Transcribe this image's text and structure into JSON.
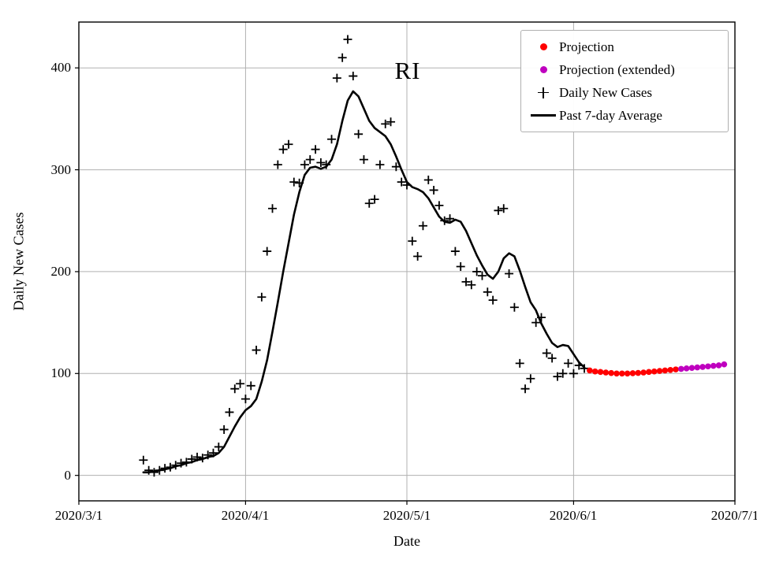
{
  "chart_data": {
    "type": "line",
    "title": "RI",
    "xlabel": "Date",
    "ylabel": "Daily New Cases",
    "x_unit": "days since 2020/3/1",
    "xlim_days": [
      0,
      122
    ],
    "ylim": [
      -25,
      445
    ],
    "grid": true,
    "colors": {
      "grid": "#b0b0b0",
      "axis": "#000000",
      "projection": "#ff0000",
      "projection_extended": "#bf00bf",
      "daily_cases": "#000000",
      "average_line": "#000000"
    },
    "x_ticks": [
      {
        "value": 0,
        "label": "2020/3/1"
      },
      {
        "value": 31,
        "label": "2020/4/1"
      },
      {
        "value": 61,
        "label": "2020/5/1"
      },
      {
        "value": 92,
        "label": "2020/6/1"
      },
      {
        "value": 122,
        "label": "2020/7/1"
      }
    ],
    "y_ticks": [
      {
        "value": 0,
        "label": "0"
      },
      {
        "value": 100,
        "label": "100"
      },
      {
        "value": 200,
        "label": "200"
      },
      {
        "value": 300,
        "label": "300"
      },
      {
        "value": 400,
        "label": "400"
      }
    ],
    "legend": {
      "position": "upper right",
      "items": [
        {
          "label": "Projection",
          "marker": "dot",
          "color": "#ff0000"
        },
        {
          "label": "Projection (extended)",
          "marker": "dot",
          "color": "#bf00bf"
        },
        {
          "label": "Daily New Cases",
          "marker": "plus",
          "color": "#000000"
        },
        {
          "label": "Past 7-day Average",
          "marker": "line",
          "color": "#000000"
        }
      ]
    },
    "series": [
      {
        "name": "Daily New Cases",
        "type": "scatter",
        "marker": "plus",
        "color": "#000000",
        "points": [
          [
            12,
            15
          ],
          [
            13,
            5
          ],
          [
            14,
            3
          ],
          [
            15,
            5
          ],
          [
            16,
            7
          ],
          [
            17,
            8
          ],
          [
            18,
            10
          ],
          [
            19,
            12
          ],
          [
            20,
            13
          ],
          [
            21,
            16
          ],
          [
            22,
            18
          ],
          [
            23,
            17
          ],
          [
            24,
            20
          ],
          [
            25,
            22
          ],
          [
            26,
            28
          ],
          [
            27,
            45
          ],
          [
            28,
            62
          ],
          [
            29,
            85
          ],
          [
            30,
            90
          ],
          [
            31,
            75
          ],
          [
            32,
            88
          ],
          [
            33,
            123
          ],
          [
            34,
            175
          ],
          [
            35,
            220
          ],
          [
            36,
            262
          ],
          [
            37,
            305
          ],
          [
            38,
            320
          ],
          [
            39,
            325
          ],
          [
            40,
            288
          ],
          [
            41,
            287
          ],
          [
            42,
            305
          ],
          [
            43,
            310
          ],
          [
            44,
            320
          ],
          [
            45,
            307
          ],
          [
            46,
            305
          ],
          [
            47,
            330
          ],
          [
            48,
            390
          ],
          [
            49,
            410
          ],
          [
            50,
            428
          ],
          [
            51,
            392
          ],
          [
            52,
            335
          ],
          [
            53,
            310
          ],
          [
            54,
            267
          ],
          [
            55,
            271
          ],
          [
            56,
            305
          ],
          [
            57,
            345
          ],
          [
            58,
            347
          ],
          [
            59,
            303
          ],
          [
            60,
            288
          ],
          [
            61,
            285
          ],
          [
            62,
            230
          ],
          [
            63,
            215
          ],
          [
            64,
            245
          ],
          [
            65,
            290
          ],
          [
            66,
            280
          ],
          [
            67,
            265
          ],
          [
            68,
            250
          ],
          [
            69,
            252
          ],
          [
            70,
            220
          ],
          [
            71,
            205
          ],
          [
            72,
            190
          ],
          [
            73,
            187
          ],
          [
            74,
            200
          ],
          [
            75,
            196
          ],
          [
            76,
            180
          ],
          [
            77,
            172
          ],
          [
            78,
            260
          ],
          [
            79,
            262
          ],
          [
            80,
            198
          ],
          [
            81,
            165
          ],
          [
            82,
            110
          ],
          [
            83,
            85
          ],
          [
            84,
            95
          ],
          [
            85,
            150
          ],
          [
            86,
            155
          ],
          [
            87,
            120
          ],
          [
            88,
            115
          ],
          [
            89,
            97
          ],
          [
            90,
            100
          ],
          [
            91,
            110
          ],
          [
            92,
            100
          ],
          [
            93,
            108
          ],
          [
            94,
            105
          ]
        ]
      },
      {
        "name": "Past 7-day Average",
        "type": "line",
        "color": "#000000",
        "points": [
          [
            12,
            3
          ],
          [
            13,
            3
          ],
          [
            14,
            4
          ],
          [
            15,
            5
          ],
          [
            16,
            6
          ],
          [
            17,
            7
          ],
          [
            18,
            9
          ],
          [
            19,
            10
          ],
          [
            20,
            12
          ],
          [
            21,
            13
          ],
          [
            22,
            15
          ],
          [
            23,
            16
          ],
          [
            24,
            18
          ],
          [
            25,
            19
          ],
          [
            26,
            22
          ],
          [
            27,
            28
          ],
          [
            28,
            38
          ],
          [
            29,
            48
          ],
          [
            30,
            57
          ],
          [
            31,
            64
          ],
          [
            32,
            68
          ],
          [
            33,
            75
          ],
          [
            34,
            92
          ],
          [
            35,
            113
          ],
          [
            36,
            141
          ],
          [
            37,
            170
          ],
          [
            38,
            200
          ],
          [
            39,
            228
          ],
          [
            40,
            256
          ],
          [
            41,
            278
          ],
          [
            42,
            295
          ],
          [
            43,
            302
          ],
          [
            44,
            303
          ],
          [
            45,
            301
          ],
          [
            46,
            303
          ],
          [
            47,
            310
          ],
          [
            48,
            325
          ],
          [
            49,
            348
          ],
          [
            50,
            368
          ],
          [
            51,
            377
          ],
          [
            52,
            372
          ],
          [
            53,
            360
          ],
          [
            54,
            348
          ],
          [
            55,
            341
          ],
          [
            56,
            337
          ],
          [
            57,
            333
          ],
          [
            58,
            325
          ],
          [
            59,
            313
          ],
          [
            60,
            300
          ],
          [
            61,
            288
          ],
          [
            62,
            283
          ],
          [
            63,
            281
          ],
          [
            64,
            278
          ],
          [
            65,
            272
          ],
          [
            66,
            263
          ],
          [
            67,
            254
          ],
          [
            68,
            249
          ],
          [
            69,
            248
          ],
          [
            70,
            251
          ],
          [
            71,
            249
          ],
          [
            72,
            240
          ],
          [
            73,
            228
          ],
          [
            74,
            216
          ],
          [
            75,
            206
          ],
          [
            76,
            197
          ],
          [
            77,
            193
          ],
          [
            78,
            200
          ],
          [
            79,
            213
          ],
          [
            80,
            218
          ],
          [
            81,
            215
          ],
          [
            82,
            201
          ],
          [
            83,
            185
          ],
          [
            84,
            170
          ],
          [
            85,
            162
          ],
          [
            86,
            149
          ],
          [
            87,
            139
          ],
          [
            88,
            130
          ],
          [
            89,
            126
          ],
          [
            90,
            128
          ],
          [
            91,
            127
          ],
          [
            92,
            119
          ],
          [
            93,
            111
          ],
          [
            94,
            106
          ]
        ]
      },
      {
        "name": "Projection",
        "type": "scatter",
        "marker": "dot",
        "color": "#ff0000",
        "points": [
          [
            95,
            103
          ],
          [
            96,
            102
          ],
          [
            97,
            101.5
          ],
          [
            98,
            101
          ],
          [
            99,
            100.5
          ],
          [
            100,
            100
          ],
          [
            101,
            100
          ],
          [
            102,
            100
          ],
          [
            103,
            100.3
          ],
          [
            104,
            100.6
          ],
          [
            105,
            101
          ],
          [
            106,
            101.5
          ],
          [
            107,
            102
          ],
          [
            108,
            102.5
          ],
          [
            109,
            103
          ],
          [
            110,
            103.5
          ],
          [
            111,
            104
          ]
        ]
      },
      {
        "name": "Projection (extended)",
        "type": "scatter",
        "marker": "dot",
        "color": "#bf00bf",
        "points": [
          [
            112,
            104.5
          ],
          [
            113,
            105
          ],
          [
            114,
            105.5
          ],
          [
            115,
            106
          ],
          [
            116,
            106.5
          ],
          [
            117,
            107
          ],
          [
            118,
            107.5
          ],
          [
            119,
            108
          ],
          [
            120,
            109
          ]
        ]
      }
    ]
  }
}
